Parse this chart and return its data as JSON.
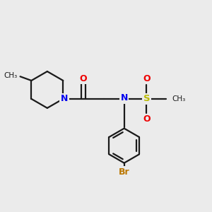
{
  "bg_color": "#ebebeb",
  "bond_color": "#1a1a1a",
  "N_color": "#0000ee",
  "O_color": "#ee0000",
  "S_color": "#bbbb00",
  "Br_color": "#bb7700",
  "line_width": 1.6,
  "fig_size": [
    3.0,
    3.0
  ],
  "dpi": 100,
  "xlim": [
    0,
    10
  ],
  "ylim": [
    0,
    10
  ]
}
